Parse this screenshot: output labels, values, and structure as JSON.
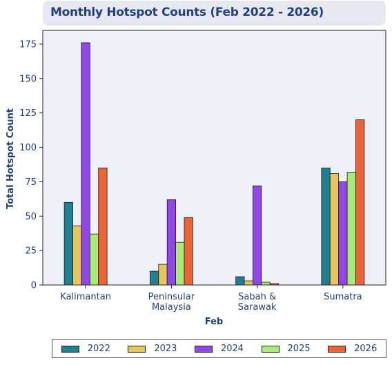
{
  "chart_data": {
    "type": "bar",
    "title": "Monthly Hotspot Counts (Feb 2022 - 2026)",
    "xlabel": "Feb",
    "ylabel": "Total Hotspot Count",
    "categories": [
      "Kalimantan",
      "Peninsular Malaysia",
      "Sabah & Sarawak",
      "Sumatra"
    ],
    "category_lines": [
      [
        "Kalimantan"
      ],
      [
        "Peninsular",
        "Malaysia"
      ],
      [
        "Sabah &",
        "Sarawak"
      ],
      [
        "Sumatra"
      ]
    ],
    "ylim": [
      0,
      185
    ],
    "yticks": [
      0,
      25,
      50,
      75,
      100,
      125,
      150,
      175
    ],
    "grid": false,
    "legend_position": "bottom",
    "series": [
      {
        "name": "2022",
        "color": "#1f7f93",
        "values": [
          60,
          10,
          6,
          85
        ]
      },
      {
        "name": "2023",
        "color": "#e8c65e",
        "values": [
          43,
          15,
          3,
          81
        ]
      },
      {
        "name": "2024",
        "color": "#9146e8",
        "values": [
          176,
          62,
          72,
          75
        ]
      },
      {
        "name": "2025",
        "color": "#a8eb78",
        "values": [
          37,
          31,
          2,
          82
        ]
      },
      {
        "name": "2026",
        "color": "#ec6336",
        "values": [
          85,
          49,
          1,
          120
        ]
      }
    ]
  },
  "colors": {
    "plot_background": "#eef1f7",
    "title_background": "#e6e9f2",
    "text": "#23407a"
  }
}
